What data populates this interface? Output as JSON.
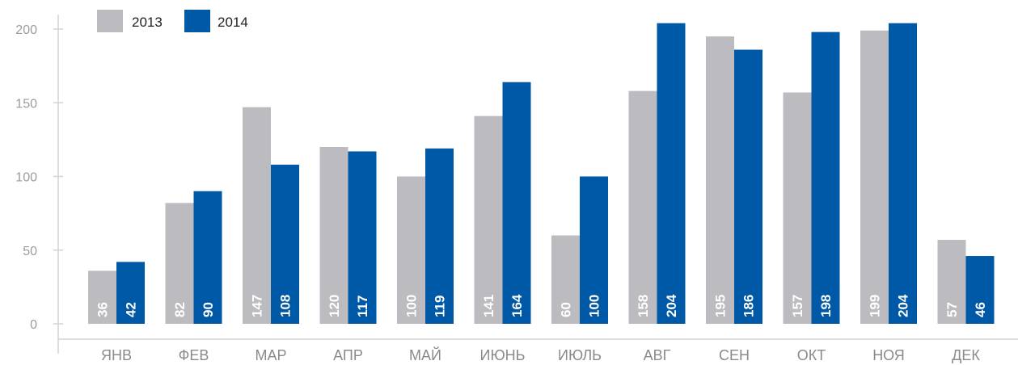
{
  "chart_data": {
    "type": "bar",
    "categories": [
      "ЯНВ",
      "ФЕВ",
      "МАР",
      "АПР",
      "МАЙ",
      "ИЮНЬ",
      "ИЮЛЬ",
      "АВГ",
      "СЕН",
      "ОКТ",
      "НОЯ",
      "ДЕК"
    ],
    "series": [
      {
        "name": "2013",
        "values": [
          36,
          82,
          147,
          120,
          100,
          141,
          60,
          158,
          195,
          157,
          199,
          57
        ],
        "color": "#bcbcc0"
      },
      {
        "name": "2014",
        "values": [
          42,
          90,
          108,
          117,
          119,
          164,
          100,
          204,
          186,
          198,
          204,
          46
        ],
        "color": "#0059a6"
      }
    ],
    "data_labels": [
      [
        "36",
        "82",
        "147",
        "120",
        "100",
        "141",
        "60",
        "158",
        "195",
        "157",
        "199",
        "57"
      ],
      [
        "42",
        "90",
        "108",
        "117",
        "119",
        "164",
        "100",
        "204",
        "186",
        "198",
        "204",
        "46"
      ]
    ],
    "yticks": [
      0,
      50,
      100,
      150,
      200
    ],
    "ylim": [
      0,
      210
    ],
    "grid": false,
    "legend_position": "top-left",
    "axis_color": "#d3d3d3"
  }
}
